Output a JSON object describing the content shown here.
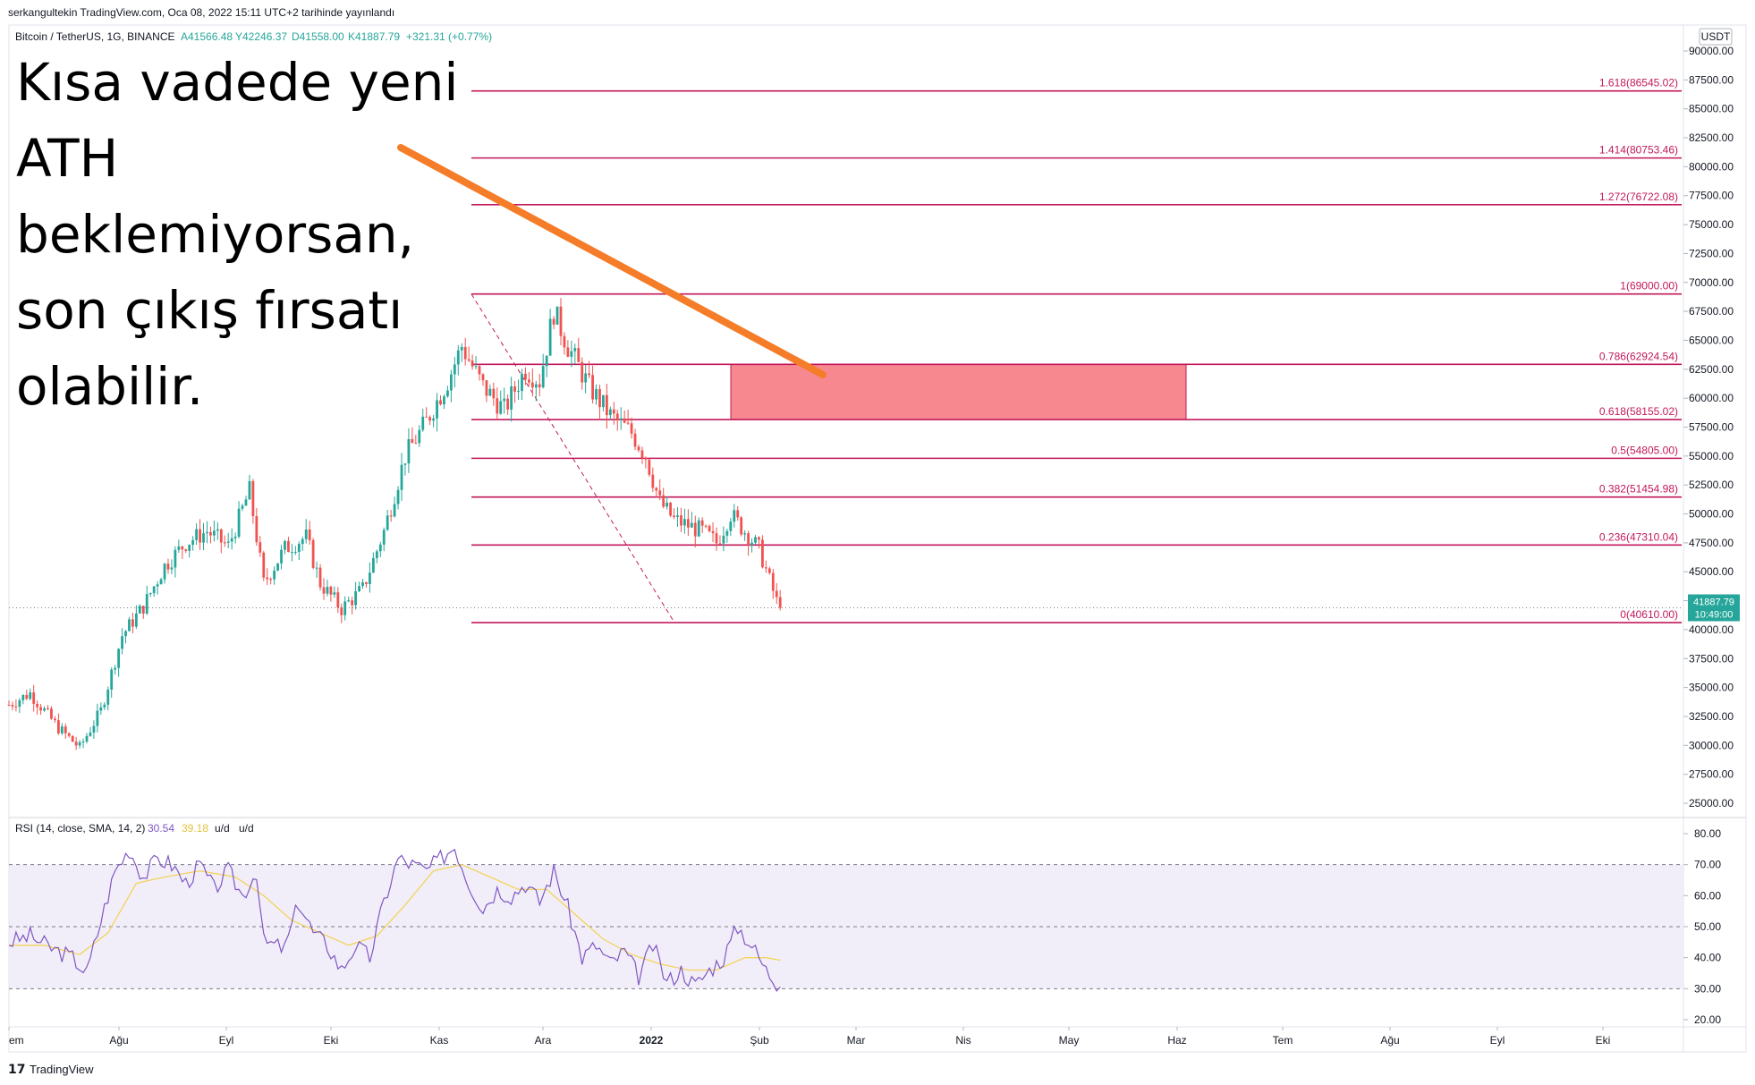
{
  "publisher_line": "serkangultekin TradingView.com, Oca 08, 2022 15:11 UTC+2 tarihinde yayınlandı",
  "legend": {
    "symbol": "Bitcoin / TetherUS, 1G, BINANCE",
    "open": "A41566.48",
    "high": "Y42246.37",
    "low": "D41558.00",
    "close": "K41887.79",
    "change": "+321.31 (+0.77%)"
  },
  "currency_badge": "USDT",
  "annotation_text": [
    "Kısa vadede yeni",
    "ATH",
    "beklemiyorsan,",
    "son çıkış fırsatı",
    "olabilir."
  ],
  "last_price": {
    "price": "41887.79",
    "countdown": "10:49:00",
    "color": "#26a69a"
  },
  "rsi_legend": {
    "label": "RSI (14, close, SMA, 14, 2)",
    "rsi": "30.54",
    "ma": "39.18",
    "extra1": "u/d",
    "extra2": "u/d"
  },
  "branding": "TradingView",
  "colors": {
    "up": "#26a69a",
    "down": "#ef5350",
    "fib": "#c2185b",
    "zone": "#f7828a",
    "arrow": "#f57c28",
    "rsi": "#7e57c2",
    "rsi_ma": "#f2d35c",
    "rsi_band": "#ede7f6"
  },
  "chart_data": [
    {
      "type": "candlestick",
      "symbol": "BTC/USDT",
      "interval": "1D",
      "ylim": [
        25000,
        90000
      ],
      "y_ticks": [
        "90000.00",
        "87500.00",
        "85000.00",
        "82500.00",
        "80000.00",
        "77500.00",
        "75000.00",
        "72500.00",
        "70000.00",
        "67500.00",
        "65000.00",
        "62500.00",
        "60000.00",
        "57500.00",
        "55000.00",
        "52500.00",
        "50000.00",
        "47500.00",
        "45000.00",
        "42500.00",
        "40000.00",
        "37500.00",
        "35000.00",
        "32500.00",
        "30000.00",
        "27500.00",
        "25000.00"
      ],
      "x_labels": [
        "Tem",
        "Ağu",
        "Eyl",
        "Eki",
        "Kas",
        "Ara",
        "2022",
        "Şub",
        "Mar",
        "Nis",
        "May",
        "Haz",
        "Tem",
        "Ağu",
        "Eyl",
        "Eki"
      ],
      "close_path": [
        [
          0,
          33500
        ],
        [
          6,
          34500
        ],
        [
          14,
          31500
        ],
        [
          20,
          29800
        ],
        [
          26,
          33000
        ],
        [
          32,
          39500
        ],
        [
          38,
          42000
        ],
        [
          44,
          45500
        ],
        [
          50,
          47500
        ],
        [
          56,
          48500
        ],
        [
          62,
          47200
        ],
        [
          68,
          52000
        ],
        [
          72,
          44000
        ],
        [
          78,
          47000
        ],
        [
          84,
          48000
        ],
        [
          88,
          44000
        ],
        [
          94,
          41800
        ],
        [
          100,
          43500
        ],
        [
          106,
          48500
        ],
        [
          112,
          55000
        ],
        [
          118,
          58000
        ],
        [
          124,
          61500
        ],
        [
          128,
          64500
        ],
        [
          134,
          61000
        ],
        [
          140,
          59000
        ],
        [
          146,
          62500
        ],
        [
          150,
          61500
        ],
        [
          154,
          67500
        ],
        [
          158,
          64500
        ],
        [
          164,
          61000
        ],
        [
          170,
          58500
        ],
        [
          176,
          57000
        ],
        [
          180,
          55000
        ],
        [
          184,
          51000
        ],
        [
          188,
          49500
        ],
        [
          192,
          49000
        ],
        [
          196,
          48500
        ],
        [
          200,
          47500
        ],
        [
          204,
          50000
        ],
        [
          208,
          48500
        ],
        [
          212,
          47000
        ],
        [
          218,
          41500
        ]
      ],
      "fib_levels": [
        {
          "label": "1.618(86545.02)",
          "value": 86545.02
        },
        {
          "label": "1.414(80753.46)",
          "value": 80753.46
        },
        {
          "label": "1.272(76722.08)",
          "value": 76722.08
        },
        {
          "label": "1(69000.00)",
          "value": 69000.0
        },
        {
          "label": "0.786(62924.54)",
          "value": 62924.54
        },
        {
          "label": "0.618(58155.02)",
          "value": 58155.02
        },
        {
          "label": "0.5(54805.00)",
          "value": 54805.0
        },
        {
          "label": "0.382(51454.98)",
          "value": 51454.98
        },
        {
          "label": "0.236(47310.04)",
          "value": 47310.04
        },
        {
          "label": "0(40610.00)",
          "value": 40610.0
        }
      ],
      "zone": {
        "from": 58155.02,
        "to": 62924.54
      },
      "last_close": 41887.79
    },
    {
      "type": "line",
      "name": "RSI (14, close, SMA, 14, 2)",
      "ylim": [
        20,
        80
      ],
      "y_ticks": [
        "80.00",
        "70.00",
        "60.00",
        "50.00",
        "40.00",
        "30.00",
        "20.00"
      ],
      "bands": [
        70,
        50,
        30
      ],
      "rsi_path": [
        [
          0,
          45
        ],
        [
          6,
          47
        ],
        [
          12,
          43
        ],
        [
          18,
          40
        ],
        [
          22,
          35
        ],
        [
          26,
          52
        ],
        [
          30,
          68
        ],
        [
          34,
          75
        ],
        [
          38,
          66
        ],
        [
          42,
          72
        ],
        [
          46,
          70
        ],
        [
          50,
          64
        ],
        [
          54,
          70
        ],
        [
          58,
          62
        ],
        [
          62,
          68
        ],
        [
          66,
          60
        ],
        [
          70,
          68
        ],
        [
          72,
          45
        ],
        [
          78,
          43
        ],
        [
          82,
          58
        ],
        [
          86,
          48
        ],
        [
          90,
          44
        ],
        [
          94,
          36
        ],
        [
          98,
          44
        ],
        [
          102,
          40
        ],
        [
          106,
          58
        ],
        [
          110,
          72
        ],
        [
          114,
          70
        ],
        [
          118,
          68
        ],
        [
          122,
          72
        ],
        [
          126,
          76
        ],
        [
          130,
          64
        ],
        [
          134,
          56
        ],
        [
          138,
          62
        ],
        [
          142,
          60
        ],
        [
          146,
          64
        ],
        [
          150,
          58
        ],
        [
          154,
          68
        ],
        [
          158,
          56
        ],
        [
          162,
          40
        ],
        [
          166,
          44
        ],
        [
          170,
          38
        ],
        [
          174,
          42
        ],
        [
          178,
          34
        ],
        [
          182,
          44
        ],
        [
          186,
          32
        ],
        [
          190,
          36
        ],
        [
          194,
          31
        ],
        [
          198,
          36
        ],
        [
          202,
          40
        ],
        [
          206,
          50
        ],
        [
          210,
          44
        ],
        [
          214,
          36
        ],
        [
          218,
          30.54
        ]
      ],
      "ma_path": [
        [
          0,
          44
        ],
        [
          10,
          44
        ],
        [
          20,
          41
        ],
        [
          28,
          48
        ],
        [
          36,
          64
        ],
        [
          44,
          66
        ],
        [
          54,
          68
        ],
        [
          64,
          66
        ],
        [
          72,
          60
        ],
        [
          80,
          52
        ],
        [
          88,
          48
        ],
        [
          96,
          44
        ],
        [
          104,
          47
        ],
        [
          112,
          57
        ],
        [
          120,
          68
        ],
        [
          128,
          70
        ],
        [
          136,
          66
        ],
        [
          144,
          62
        ],
        [
          152,
          62
        ],
        [
          160,
          54
        ],
        [
          168,
          46
        ],
        [
          176,
          41
        ],
        [
          184,
          38
        ],
        [
          192,
          36
        ],
        [
          200,
          36
        ],
        [
          208,
          40
        ],
        [
          214,
          40
        ],
        [
          218,
          39.18
        ]
      ]
    }
  ]
}
